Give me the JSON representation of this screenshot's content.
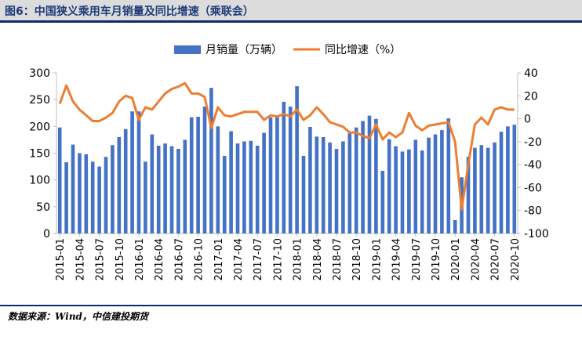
{
  "header": {
    "title": "图6：中国狭义乘用车月销量及同比增速（乘联会）"
  },
  "footer": {
    "source": "数据来源：Wind，中信建投期货"
  },
  "colors": {
    "bar": "#4472c4",
    "line": "#ed7d31",
    "title": "#1f3c7a",
    "rule": "#0a2d6e"
  },
  "chart_data": {
    "type": "bar",
    "categories": [
      "2015-01",
      "2015-02",
      "2015-03",
      "2015-04",
      "2015-05",
      "2015-06",
      "2015-07",
      "2015-08",
      "2015-09",
      "2015-10",
      "2015-11",
      "2015-12",
      "2016-01",
      "2016-02",
      "2016-03",
      "2016-04",
      "2016-05",
      "2016-06",
      "2016-07",
      "2016-08",
      "2016-09",
      "2016-10",
      "2016-11",
      "2016-12",
      "2017-01",
      "2017-02",
      "2017-03",
      "2017-04",
      "2017-05",
      "2017-06",
      "2017-07",
      "2017-08",
      "2017-09",
      "2017-10",
      "2017-11",
      "2017-12",
      "2018-01",
      "2018-02",
      "2018-03",
      "2018-04",
      "2018-05",
      "2018-06",
      "2018-07",
      "2018-08",
      "2018-09",
      "2018-10",
      "2018-11",
      "2018-12",
      "2019-01",
      "2019-02",
      "2019-03",
      "2019-04",
      "2019-05",
      "2019-06",
      "2019-07",
      "2019-08",
      "2019-09",
      "2019-10",
      "2019-11",
      "2019-12",
      "2020-01",
      "2020-02",
      "2020-03",
      "2020-04",
      "2020-05",
      "2020-06",
      "2020-07",
      "2020-08",
      "2020-09",
      "2020-10"
    ],
    "x_tick_labels": [
      "2015-01",
      "2015-04",
      "2015-07",
      "2015-10",
      "2016-01",
      "2016-04",
      "2016-07",
      "2016-10",
      "2017-01",
      "2017-04",
      "2017-07",
      "2017-10",
      "2018-01",
      "2018-04",
      "2018-07",
      "2018-10",
      "2019-01",
      "2019-04",
      "2019-07",
      "2019-10",
      "2020-01",
      "2020-04",
      "2020-07",
      "2020-10"
    ],
    "series": [
      {
        "name": "月销量（万辆）",
        "type": "bar",
        "axis": "left",
        "values": [
          198,
          133,
          166,
          150,
          148,
          134,
          125,
          143,
          165,
          180,
          195,
          228,
          228,
          134,
          185,
          164,
          168,
          163,
          158,
          175,
          217,
          218,
          237,
          272,
          200,
          145,
          191,
          168,
          172,
          173,
          164,
          188,
          217,
          218,
          246,
          237,
          275,
          145,
          199,
          181,
          180,
          170,
          158,
          172,
          187,
          198,
          210,
          220,
          214,
          117,
          176,
          163,
          153,
          157,
          175,
          155,
          179,
          185,
          193,
          215,
          25,
          105,
          143,
          160,
          165,
          160,
          170,
          190,
          200,
          203
        ]
      },
      {
        "name": "同比增速（%）",
        "type": "line",
        "axis": "right",
        "values": [
          13,
          29,
          15,
          8,
          3,
          -2,
          -2,
          1,
          5,
          15,
          20,
          18,
          -1,
          10,
          8,
          15,
          22,
          26,
          28,
          31,
          22,
          22,
          19,
          -8,
          10,
          3,
          2,
          4,
          6,
          6,
          6,
          -1,
          3,
          2,
          4,
          2,
          8,
          -1,
          3,
          10,
          4,
          -3,
          -5,
          -7,
          -12,
          -12,
          -15,
          -17,
          -5,
          -18,
          -12,
          -16,
          -12,
          5,
          -6,
          -10,
          -6,
          -5,
          -4,
          -3,
          -20,
          -79,
          -40,
          -5,
          1,
          -5,
          8,
          10,
          8,
          8
        ]
      }
    ],
    "y_left": {
      "min": 0,
      "max": 300,
      "ticks": [
        0,
        50,
        100,
        150,
        200,
        250,
        300
      ]
    },
    "y_right": {
      "min": -100,
      "max": 40,
      "ticks": [
        -100,
        -80,
        -60,
        -40,
        -20,
        0,
        20,
        40
      ]
    },
    "legend_position": "top-center",
    "grid": false
  }
}
